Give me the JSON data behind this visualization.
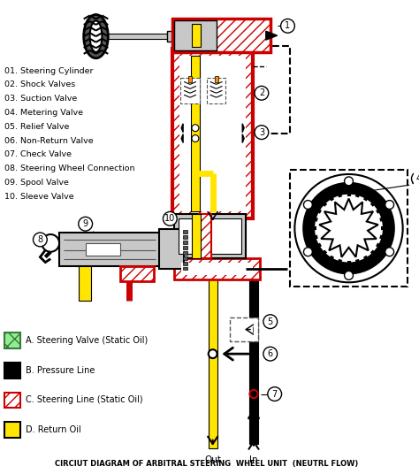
{
  "title": "CIRCIUT DIAGRAM OF ARBITRAL STEERING  WHEEL UNIT  (NEUTRL FLOW)",
  "bg_color": "#ffffff",
  "numbered_labels": [
    "01. Steering Cylinder",
    "02. Shock Valves",
    "03. Suction Valve",
    "04. Metering Valve",
    "05. Relief Valve",
    "06. Non-Return Valve",
    "07. Check Valve",
    "08. Steering Wheel Connection",
    "09. Spool Valve",
    "10. Sleeve Valve"
  ],
  "yellow": "#FFE500",
  "black": "#000000",
  "red": "#CC0000",
  "green": "#3A7A3A",
  "gray": "#888888",
  "lgray": "#C8C8C8",
  "dgray": "#555555",
  "white": "#ffffff"
}
